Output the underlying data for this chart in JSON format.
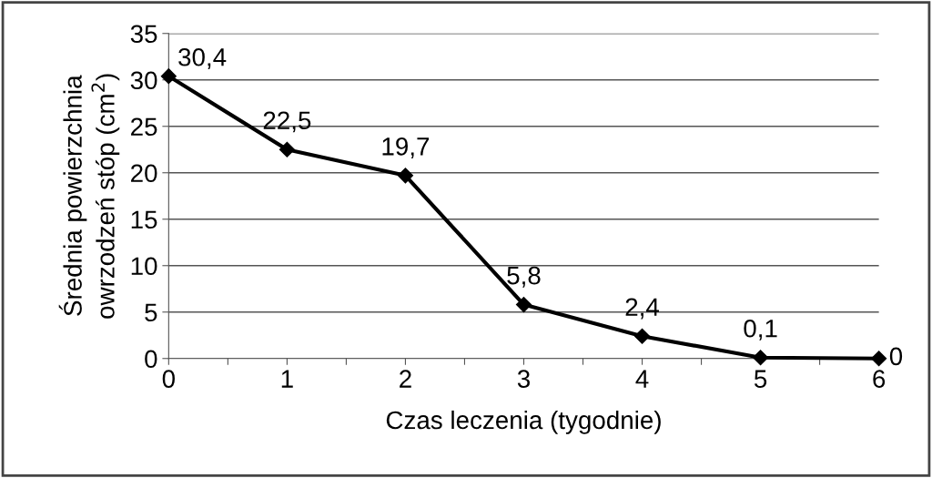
{
  "chart_data": {
    "type": "line",
    "xlabel": "Czas leczenia (tygodnie)",
    "ylabel": "Średnia powierzchnia\nowrzodzeń stóp (cm$^{2}$)",
    "x": [
      0,
      1,
      2,
      3,
      4,
      5,
      6
    ],
    "series": [
      {
        "color": "#000000",
        "values": [
          30.4,
          22.5,
          19.7,
          5.8,
          2.4,
          0.1,
          0
        ]
      }
    ],
    "value_labels": [
      "30,4",
      "22,5",
      "19,7",
      "5,8",
      "2,4",
      "0,1",
      "0"
    ],
    "xlim": [
      0,
      6
    ],
    "xticks": [
      0,
      {
        "value": 0.5,
        "label": null
      },
      1,
      {
        "value": 1.5,
        "label": null
      },
      2,
      {
        "value": 2.5,
        "label": null
      },
      3,
      {
        "value": 3.5,
        "label": null
      },
      4,
      {
        "value": 4.5,
        "label": null
      },
      5,
      {
        "value": 5.5,
        "label": null
      },
      6
    ],
    "ylim": [
      0,
      35
    ],
    "yticks": [
      0,
      5,
      10,
      15,
      20,
      25,
      30,
      35
    ],
    "grid": "y",
    "marker": "diamond",
    "line_style": "solid",
    "legend": false
  }
}
